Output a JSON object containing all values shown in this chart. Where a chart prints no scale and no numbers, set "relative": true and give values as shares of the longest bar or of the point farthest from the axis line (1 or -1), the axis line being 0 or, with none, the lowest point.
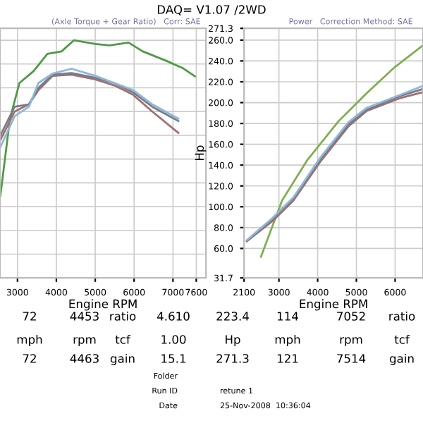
{
  "chart_data": [
    {
      "type": "line",
      "title": "DAQ= V1.07 /2WD",
      "subtitle": "(Axle Torque + Gear Ratio)   Corr: SAE",
      "xlabel": "Engine RPM",
      "relative": true,
      "xlim": [
        2550,
        7850
      ],
      "xticks": [
        3000,
        4000,
        5000,
        6000,
        7000,
        7600
      ],
      "grid": true,
      "legend": false,
      "marker": "none",
      "line_style": "solid",
      "series": [
        {
          "color": "#4f9a45",
          "x": [
            2560,
            2806,
            3050,
            3414,
            3770,
            4135,
            4454,
            5004,
            5370,
            5857,
            6223,
            6835,
            7260,
            7568
          ],
          "values": [
            0.346,
            0.67,
            0.82,
            0.87,
            0.943,
            0.953,
            1.0,
            0.984,
            0.978,
            0.99,
            0.953,
            0.913,
            0.882,
            0.848
          ]
        },
        {
          "color": "#a07070",
          "x": [
            2560,
            2927,
            3293,
            3538,
            3905,
            4392,
            5004,
            5491,
            5978,
            6469,
            7139
          ],
          "values": [
            0.58,
            0.7,
            0.73,
            0.79,
            0.85,
            0.855,
            0.835,
            0.81,
            0.77,
            0.7,
            0.61
          ]
        },
        {
          "color": "#7a7a8a",
          "x": [
            2560,
            2927,
            3293,
            3538,
            3905,
            4392,
            5004,
            5491,
            5978,
            6469,
            7139
          ],
          "values": [
            0.6,
            0.72,
            0.73,
            0.8,
            0.855,
            0.862,
            0.842,
            0.82,
            0.78,
            0.72,
            0.66
          ]
        },
        {
          "color": "#8db8d8",
          "x": [
            2560,
            2927,
            3293,
            3538,
            3905,
            4392,
            5004,
            5491,
            5978,
            6469,
            7139
          ],
          "values": [
            0.55,
            0.68,
            0.72,
            0.82,
            0.86,
            0.88,
            0.85,
            0.82,
            0.79,
            0.73,
            0.67
          ]
        }
      ],
      "annotations": [
        "72",
        "4453",
        "ratio",
        "4.610",
        "mph",
        "rpm",
        "tcf",
        "1.00",
        "72",
        "4463",
        "gain",
        "15.1"
      ]
    },
    {
      "type": "line",
      "subtitle": "Power   Correction Method: SAE",
      "xlabel": "Engine RPM",
      "ylabel": "Hp",
      "xlim": [
        2100,
        6720
      ],
      "xticks": [
        2100,
        3000,
        4000,
        5000,
        6000
      ],
      "ylim": [
        31.7,
        271.3
      ],
      "yticks": [
        31.7,
        {
          "value": 60,
          "label": "60.0"
        },
        {
          "value": 80,
          "label": "80.0"
        },
        {
          "value": 100,
          "label": "100.0"
        },
        {
          "value": 120,
          "label": "120.0"
        },
        {
          "value": 140,
          "label": "140.0"
        },
        {
          "value": 160,
          "label": "160.0"
        },
        {
          "value": 180,
          "label": "180.0"
        },
        {
          "value": 200,
          "label": "200.0"
        },
        {
          "value": 220,
          "label": "220.0"
        },
        {
          "value": 240,
          "label": "240.0"
        },
        {
          "value": 260,
          "label": "260.0"
        },
        271.3
      ],
      "grid": true,
      "legend": false,
      "marker": "none",
      "line_style": "solid",
      "series": [
        {
          "color": "#7fb050",
          "x": [
            2536,
            3080,
            3736,
            4536,
            5264,
            5990,
            6718
          ],
          "values": [
            52,
            106,
            145,
            182,
            209,
            234,
            255
          ]
        },
        {
          "color": "#a07070",
          "x": [
            2173,
            2827,
            3373,
            4064,
            4790,
            5264,
            6100,
            6718
          ],
          "values": [
            67,
            86,
            106,
            143,
            177,
            192,
            204,
            210
          ]
        },
        {
          "color": "#7a7a8a",
          "x": [
            2173,
            2827,
            3373,
            4064,
            4790,
            5264,
            6100,
            6718
          ],
          "values": [
            67,
            88,
            108,
            145,
            179,
            193,
            206,
            213
          ]
        },
        {
          "color": "#8db8d8",
          "x": [
            2173,
            2827,
            3373,
            4064,
            4790,
            5264,
            6100,
            6718
          ],
          "values": [
            68,
            89,
            109,
            147,
            181,
            195,
            207,
            216
          ]
        }
      ],
      "annotations": [
        "223.4",
        "114",
        "7052",
        "ratio",
        "Hp",
        "mph",
        "rpm",
        "tcf",
        "271.3",
        "121",
        "7514",
        "gain",
        "Folder",
        "Run ID",
        "retune 1",
        "Date",
        "25-Nov-2008  10:36:04"
      ]
    }
  ]
}
